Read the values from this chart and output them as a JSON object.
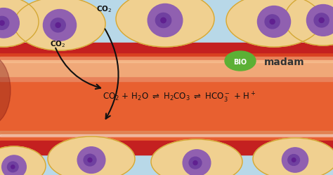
{
  "fig_width": 4.74,
  "fig_height": 2.51,
  "dpi": 100,
  "bg_color": "#b8d8e8",
  "vessel_dark_red": "#c42020",
  "vessel_mid_red": "#d94020",
  "vessel_light_red": "#e86030",
  "vessel_salmon": "#e8825a",
  "vessel_peach": "#f0a878",
  "cell_body": "#f0d090",
  "cell_edge": "#d4a835",
  "nucleus_outer": "#9060b0",
  "nucleus_inner": "#7040a0",
  "nucleus_dark": "#602090",
  "arrow_color": "#111111",
  "text_color": "#111111",
  "equation_fontsize": 8.5,
  "co2_fontsize": 7.5,
  "bio_green": "#5cb035",
  "madam_color": "#333333"
}
